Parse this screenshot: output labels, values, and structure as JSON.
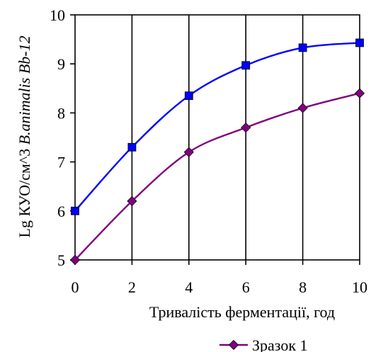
{
  "chart_data": {
    "type": "line",
    "x": [
      0,
      2,
      4,
      6,
      8,
      10
    ],
    "xlim": [
      0,
      10
    ],
    "ylim": [
      5,
      10
    ],
    "xticks": [
      "0",
      "2",
      "4",
      "6",
      "8",
      "10"
    ],
    "yticks": [
      "5",
      "6",
      "7",
      "8",
      "9",
      "10"
    ],
    "xlabel": "Тривалість ферментації, год",
    "ylabel_parts": [
      "Lg КУО/см^3 ",
      "B.animalis Bb-12"
    ],
    "grid": "vertical",
    "series": [
      {
        "name": "",
        "color": "#0000ff",
        "marker": "square",
        "marker_color": "#0000ff",
        "values": [
          6.0,
          7.3,
          8.35,
          8.97,
          9.33,
          9.43
        ]
      },
      {
        "name": "Зразок 1",
        "color": "#800080",
        "marker": "diamond",
        "marker_color": "#800080",
        "values": [
          5.0,
          6.2,
          7.2,
          7.7,
          8.1,
          8.4
        ]
      }
    ],
    "legend_position": "bottom-right"
  }
}
